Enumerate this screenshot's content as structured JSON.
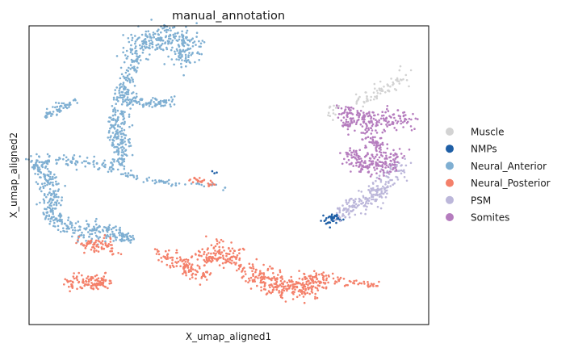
{
  "chart_data": {
    "type": "scatter",
    "title": "manual_annotation",
    "xlabel": "X_umap_aligned1",
    "ylabel": "X_umap_aligned2",
    "xticks": [],
    "yticks": [],
    "grid": false,
    "legend_position": "right",
    "xlim": [
      0,
      100
    ],
    "ylim": [
      0,
      100
    ],
    "series": [
      {
        "name": "Muscle",
        "color": "#d3d3d3",
        "clusters": [
          {
            "path": [
              [
                82,
                74
              ],
              [
                86,
                77
              ],
              [
                90,
                80
              ],
              [
                94,
                83
              ],
              [
                95,
                84
              ]
            ],
            "spread": 1.3,
            "n": 70
          },
          {
            "path": [
              [
                75,
                71
              ],
              [
                77,
                72
              ]
            ],
            "spread": 1.0,
            "n": 14
          }
        ]
      },
      {
        "name": "NMPs",
        "color": "#1f5fa6",
        "clusters": [
          {
            "path": [
              [
                74,
                35
              ],
              [
                76,
                35.5
              ],
              [
                78,
                36
              ]
            ],
            "spread": 0.9,
            "n": 45
          },
          {
            "path": [
              [
                46,
                51
              ],
              [
                47,
                50.5
              ]
            ],
            "spread": 0.4,
            "n": 3
          }
        ]
      },
      {
        "name": "Neural_Anterior",
        "color": "#7fafd2",
        "clusters": [
          {
            "path": [
              [
                26,
                93
              ],
              [
                33,
                96
              ],
              [
                38,
                96
              ],
              [
                40,
                93
              ],
              [
                38,
                89
              ]
            ],
            "spread": 2.4,
            "n": 280
          },
          {
            "path": [
              [
                26,
                88
              ],
              [
                25,
                83
              ],
              [
                24,
                79
              ],
              [
                23,
                76
              ]
            ],
            "spread": 1.2,
            "n": 70
          },
          {
            "path": [
              [
                22,
                76
              ],
              [
                26,
                75
              ],
              [
                31,
                74
              ],
              [
                35,
                74
              ]
            ],
            "spread": 1.2,
            "n": 110
          },
          {
            "path": [
              [
                23,
                72
              ],
              [
                22,
                66
              ],
              [
                23,
                60
              ],
              [
                23,
                56
              ],
              [
                22,
                52
              ]
            ],
            "spread": 1.6,
            "n": 190
          },
          {
            "path": [
              [
                21,
                52
              ],
              [
                16,
                54
              ],
              [
                10,
                55
              ],
              [
                5,
                55
              ],
              [
                1,
                55
              ]
            ],
            "spread": 1.1,
            "n": 80
          },
          {
            "path": [
              [
                1,
                55
              ],
              [
                4,
                50
              ],
              [
                6,
                45
              ],
              [
                6,
                41
              ],
              [
                5,
                37
              ],
              [
                8,
                33
              ],
              [
                12,
                31
              ],
              [
                17,
                31
              ],
              [
                21,
                31
              ]
            ],
            "spread": 1.5,
            "n": 320
          },
          {
            "path": [
              [
                4,
                70
              ],
              [
                7,
                72
              ],
              [
                10,
                74
              ],
              [
                12,
                75
              ]
            ],
            "spread": 0.8,
            "n": 55
          },
          {
            "path": [
              [
                20,
                32
              ],
              [
                23,
                30
              ],
              [
                26,
                28
              ]
            ],
            "spread": 1.0,
            "n": 60
          },
          {
            "path": [
              [
                22,
                51
              ],
              [
                28,
                49
              ],
              [
                33,
                48
              ],
              [
                36,
                47
              ]
            ],
            "spread": 0.5,
            "n": 35
          },
          {
            "path": [
              [
                36,
                47
              ],
              [
                41,
                47
              ],
              [
                46,
                47
              ],
              [
                50,
                45
              ]
            ],
            "spread": 0.35,
            "n": 20
          },
          {
            "path": [
              [
                24,
                86
              ],
              [
                26,
                88
              ],
              [
                28,
                90
              ]
            ],
            "spread": 0.6,
            "n": 18
          }
        ]
      },
      {
        "name": "Neural_Posterior",
        "color": "#f4806a",
        "clusters": [
          {
            "path": [
              [
                40,
                49
              ],
              [
                43,
                48
              ],
              [
                46,
                47
              ]
            ],
            "spread": 0.5,
            "n": 30
          },
          {
            "path": [
              [
                13,
                28
              ],
              [
                16,
                26
              ],
              [
                19,
                27
              ],
              [
                21,
                25
              ]
            ],
            "spread": 1.3,
            "n": 75
          },
          {
            "path": [
              [
                10,
                14
              ],
              [
                14,
                14
              ],
              [
                18,
                14
              ],
              [
                20,
                15
              ]
            ],
            "spread": 1.2,
            "n": 110
          },
          {
            "path": [
              [
                32,
                24
              ],
              [
                37,
                21
              ],
              [
                41,
                18
              ],
              [
                45,
                16
              ]
            ],
            "spread": 1.3,
            "n": 110
          },
          {
            "path": [
              [
                43,
                22
              ],
              [
                47,
                24
              ],
              [
                50,
                23
              ],
              [
                52,
                22
              ]
            ],
            "spread": 1.8,
            "n": 140
          },
          {
            "path": [
              [
                55,
                17
              ],
              [
                59,
                15
              ],
              [
                63,
                13
              ],
              [
                67,
                12
              ],
              [
                70,
                13
              ],
              [
                72,
                15
              ],
              [
                74,
                15
              ]
            ],
            "spread": 2.1,
            "n": 300
          },
          {
            "path": [
              [
                74,
                15
              ],
              [
                78,
                14.5
              ],
              [
                82,
                14
              ],
              [
                84,
                13.5
              ],
              [
                88,
                13
              ]
            ],
            "spread": 0.5,
            "n": 40
          }
        ]
      },
      {
        "name": "PSM",
        "color": "#bcb7da",
        "clusters": [
          {
            "path": [
              [
                78,
                37
              ],
              [
                82,
                40
              ],
              [
                86,
                43
              ],
              [
                89,
                47
              ],
              [
                91,
                51
              ],
              [
                93,
                54
              ]
            ],
            "spread": 1.8,
            "n": 220
          }
        ]
      },
      {
        "name": "Somites",
        "color": "#b57cbe",
        "clusters": [
          {
            "path": [
              [
                78,
                71
              ],
              [
                83,
                69
              ],
              [
                87,
                68
              ],
              [
                92,
                68
              ],
              [
                95,
                69
              ]
            ],
            "spread": 1.7,
            "n": 180
          },
          {
            "path": [
              [
                84,
                64
              ],
              [
                86,
                61
              ],
              [
                87,
                58
              ]
            ],
            "spread": 1.3,
            "n": 60
          },
          {
            "path": [
              [
                80,
                57
              ],
              [
                84,
                54
              ],
              [
                88,
                53
              ],
              [
                91,
                54
              ],
              [
                92,
                57
              ]
            ],
            "spread": 1.7,
            "n": 180
          },
          {
            "path": [
              [
                79,
                68
              ],
              [
                80,
                66
              ]
            ],
            "spread": 0.8,
            "n": 20
          }
        ]
      }
    ]
  }
}
